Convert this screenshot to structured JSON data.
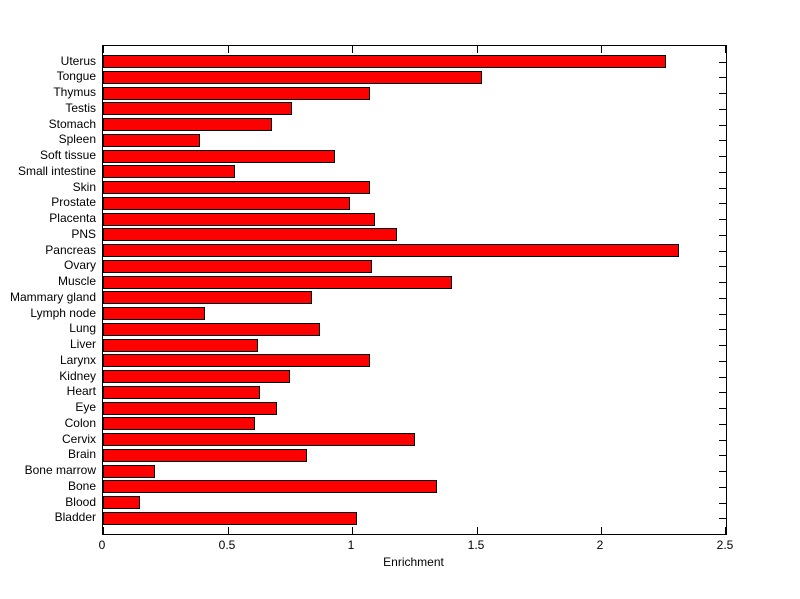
{
  "chart_data": {
    "type": "bar",
    "orientation": "horizontal",
    "title": "",
    "xlabel": "Enrichment",
    "ylabel": "",
    "xlim": [
      0,
      2.5
    ],
    "xticks": [
      0,
      0.5,
      1,
      1.5,
      2,
      2.5
    ],
    "xtick_labels": [
      "0",
      "0.5",
      "1",
      "1.5",
      "2",
      "2.5"
    ],
    "grid": false,
    "legend_position": "none",
    "bar_color": "#ff0000",
    "bar_edge_color": "#000000",
    "axis_color": "#000000",
    "background_color": "#ffffff",
    "categories": [
      "Uterus",
      "Tongue",
      "Thymus",
      "Testis",
      "Stomach",
      "Spleen",
      "Soft tissue",
      "Small intestine",
      "Skin",
      "Prostate",
      "Placenta",
      "PNS",
      "Pancreas",
      "Ovary",
      "Muscle",
      "Mammary gland",
      "Lymph node",
      "Lung",
      "Liver",
      "Larynx",
      "Kidney",
      "Heart",
      "Eye",
      "Colon",
      "Cervix",
      "Brain",
      "Bone marrow",
      "Bone",
      "Blood",
      "Bladder"
    ],
    "values": [
      2.26,
      1.52,
      1.07,
      0.76,
      0.68,
      0.39,
      0.93,
      0.53,
      1.07,
      0.99,
      1.09,
      1.18,
      2.31,
      1.08,
      1.4,
      0.84,
      0.41,
      0.87,
      0.62,
      1.07,
      0.75,
      0.63,
      0.7,
      0.61,
      1.25,
      0.82,
      0.21,
      1.34,
      0.15,
      1.02
    ]
  }
}
